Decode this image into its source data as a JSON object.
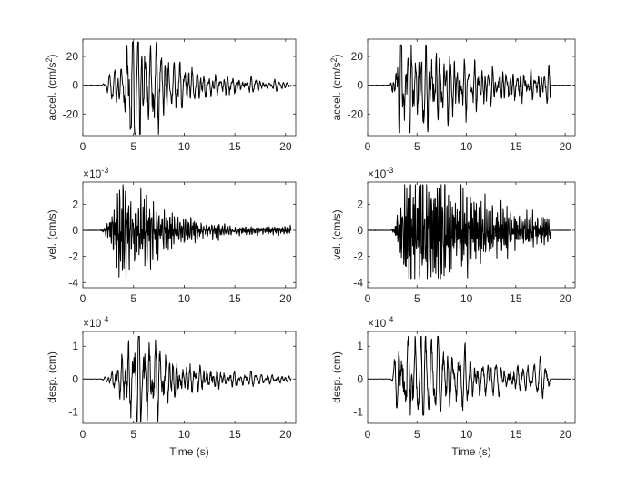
{
  "figure": {
    "background": "#ffffff",
    "trace_color": "#000000",
    "axis_color": "#262626"
  },
  "chart_data": [
    {
      "type": "line",
      "id": "accel-left",
      "title": "",
      "xlabel": "",
      "ylabel": "accel. (cm/s²)",
      "exponent": "",
      "xlim": [
        0,
        21
      ],
      "ylim": [
        -35,
        32
      ],
      "xticks": [
        0,
        5,
        10,
        15,
        20
      ],
      "yticks": [
        -20,
        0,
        20
      ],
      "signal": {
        "onset": 1.7,
        "peak_time": 4.9,
        "end": 20.5,
        "peak_amplitude": 30,
        "trough_amplitude": -34,
        "decay": 5.5,
        "tail_amplitude": 2,
        "freq_hz": 2.5,
        "seed": 11
      }
    },
    {
      "type": "line",
      "id": "accel-right",
      "title": "",
      "xlabel": "",
      "ylabel": "accel. (cm/s²)",
      "exponent": "",
      "xlim": [
        0,
        21
      ],
      "ylim": [
        -35,
        32
      ],
      "xticks": [
        0,
        5,
        10,
        15,
        20
      ],
      "yticks": [
        -20,
        0,
        20
      ],
      "signal": {
        "onset": 2.2,
        "peak_time": 3.2,
        "end": 18.5,
        "peak_amplitude": 28,
        "trough_amplitude": -33,
        "decay": 9,
        "tail_amplitude": 8,
        "freq_hz": 2.3,
        "seed": 23
      }
    },
    {
      "type": "line",
      "id": "vel-left",
      "title": "",
      "xlabel": "",
      "ylabel": "vel. (cm/s)",
      "exponent": "-3",
      "xlim": [
        0,
        21
      ],
      "ylim": [
        -4.4,
        3.7
      ],
      "xticks": [
        0,
        5,
        10,
        15,
        20
      ],
      "yticks": [
        -4,
        -2,
        0,
        2
      ],
      "signal": {
        "onset": 1.6,
        "peak_time": 4.2,
        "end": 20.5,
        "peak_amplitude": 3.5,
        "trough_amplitude": -4.0,
        "decay": 5,
        "tail_amplitude": 0.3,
        "freq_hz": 6,
        "seed": 37
      }
    },
    {
      "type": "line",
      "id": "vel-right",
      "title": "",
      "xlabel": "",
      "ylabel": "vel. (cm/s)",
      "exponent": "-3",
      "xlim": [
        0,
        21
      ],
      "ylim": [
        -4.4,
        3.7
      ],
      "xticks": [
        0,
        5,
        10,
        15,
        20
      ],
      "yticks": [
        -4,
        -2,
        0,
        2
      ],
      "signal": {
        "onset": 2.3,
        "peak_time": 4.5,
        "end": 18.5,
        "peak_amplitude": 3.5,
        "trough_amplitude": -3.7,
        "decay": 8,
        "tail_amplitude": 0.6,
        "freq_hz": 6,
        "seed": 41
      }
    },
    {
      "type": "line",
      "id": "desp-left",
      "title": "",
      "xlabel": "Time (s)",
      "ylabel": "desp. (cm)",
      "exponent": "-4",
      "xlim": [
        0,
        21
      ],
      "ylim": [
        -1.35,
        1.45
      ],
      "xticks": [
        0,
        5,
        10,
        15,
        20
      ],
      "yticks": [
        -1,
        0,
        1
      ],
      "signal": {
        "onset": 1.7,
        "peak_time": 5.0,
        "end": 20.5,
        "peak_amplitude": 1.3,
        "trough_amplitude": -1.3,
        "decay": 5.5,
        "tail_amplitude": 0.1,
        "freq_hz": 2.2,
        "seed": 53
      }
    },
    {
      "type": "line",
      "id": "desp-right",
      "title": "",
      "xlabel": "Time (s)",
      "ylabel": "desp. (cm)",
      "exponent": "-4",
      "xlim": [
        0,
        21
      ],
      "ylim": [
        -1.35,
        1.45
      ],
      "xticks": [
        0,
        5,
        10,
        15,
        20
      ],
      "yticks": [
        -1,
        0,
        1
      ],
      "signal": {
        "onset": 2.3,
        "peak_time": 3.2,
        "end": 18.5,
        "peak_amplitude": 1.3,
        "trough_amplitude": -1.1,
        "decay": 9,
        "tail_amplitude": 0.3,
        "freq_hz": 2.0,
        "seed": 67
      }
    }
  ]
}
